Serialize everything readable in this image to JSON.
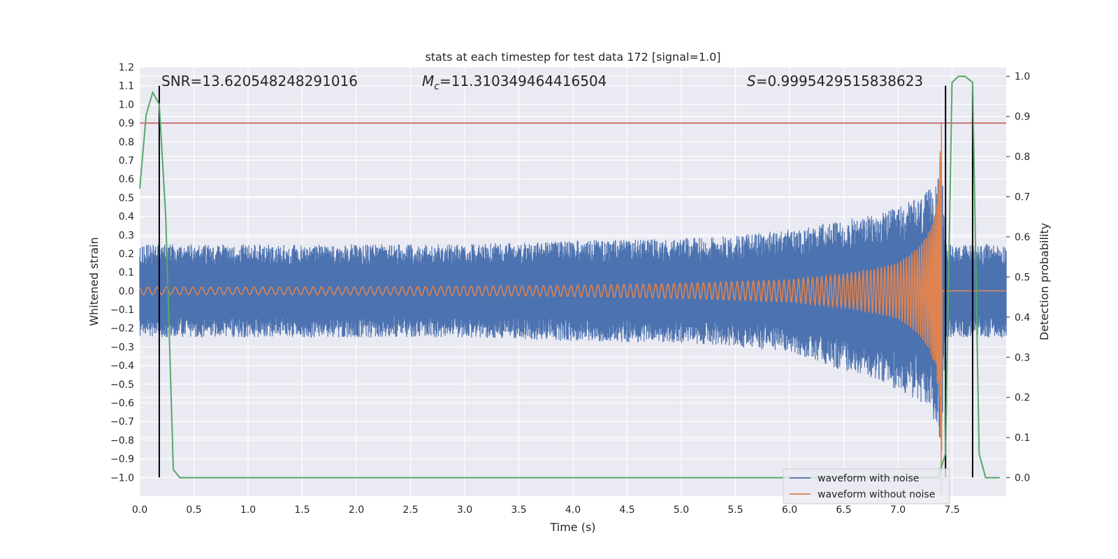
{
  "chart_data": {
    "type": "line",
    "title": "stats at each timestep for test data 172 [signal=1.0]",
    "xlabel": "Time (s)",
    "ylabel": "Whitened strain",
    "ylabel_right": "Detection probability",
    "xlim": [
      0.0,
      8.0
    ],
    "ylim": [
      -1.1,
      1.2
    ],
    "ylim_right": [
      -0.046,
      1.023
    ],
    "x_ticks": [
      "0.0",
      "0.5",
      "1.0",
      "1.5",
      "2.0",
      "2.5",
      "3.0",
      "3.5",
      "4.0",
      "4.5",
      "5.0",
      "5.5",
      "6.0",
      "6.5",
      "7.0",
      "7.5"
    ],
    "y_ticks": [
      "1.2",
      "1.1",
      "1.0",
      "0.9",
      "0.8",
      "0.7",
      "0.6",
      "0.5",
      "0.4",
      "0.3",
      "0.2",
      "0.1",
      "0.0",
      "−0.1",
      "−0.2",
      "−0.3",
      "−0.4",
      "−0.5",
      "−0.6",
      "−0.7",
      "−0.8",
      "−0.9",
      "−1.0"
    ],
    "y_ticks_right": [
      "1.0",
      "0.9",
      "0.8",
      "0.7",
      "0.6",
      "0.5",
      "0.4",
      "0.3",
      "0.2",
      "0.1",
      "0.0"
    ],
    "annotations": {
      "snr": "SNR=13.620548248291016",
      "mc_symbol": "M",
      "mc_sub": "c",
      "mc_value": "=11.310349464416504",
      "s_symbol": "S",
      "s_value": "=0.9995429515838623"
    },
    "threshold": {
      "y": 0.9,
      "color": "#c44e52"
    },
    "vlines": [
      {
        "x": 0.18,
        "y0": -1.0,
        "y1": 1.1
      },
      {
        "x": 7.44,
        "y0": -1.0,
        "y1": 1.1
      },
      {
        "x": 7.69,
        "y0": -1.0,
        "y1": 1.1
      }
    ],
    "series": [
      {
        "name": "waveform with noise",
        "color": "#4c72b0",
        "envelope": {
          "x": [
            0.0,
            1.0,
            2.0,
            3.0,
            4.0,
            5.0,
            5.5,
            6.0,
            6.5,
            6.8,
            7.0,
            7.1,
            7.2,
            7.3,
            7.35,
            7.4,
            7.44,
            8.0
          ],
          "upper": [
            0.25,
            0.25,
            0.25,
            0.25,
            0.27,
            0.28,
            0.3,
            0.33,
            0.38,
            0.41,
            0.45,
            0.48,
            0.5,
            0.55,
            0.62,
            0.75,
            0.25,
            0.25
          ],
          "lower": [
            -0.25,
            -0.25,
            -0.25,
            -0.25,
            -0.27,
            -0.28,
            -0.3,
            -0.33,
            -0.43,
            -0.48,
            -0.53,
            -0.56,
            -0.61,
            -0.65,
            -0.72,
            -0.85,
            -0.25,
            -0.25
          ]
        }
      },
      {
        "name": "waveform without noise",
        "color": "#dd8452",
        "envelope": {
          "x": [
            0.0,
            1.0,
            2.0,
            3.0,
            4.0,
            5.0,
            5.5,
            6.0,
            6.5,
            6.8,
            7.0,
            7.1,
            7.2,
            7.3,
            7.35,
            7.38,
            7.4,
            7.42,
            8.0
          ],
          "amplitude": [
            0.02,
            0.02,
            0.022,
            0.025,
            0.03,
            0.04,
            0.05,
            0.06,
            0.09,
            0.12,
            0.15,
            0.19,
            0.24,
            0.33,
            0.42,
            0.6,
            1.1,
            0.0,
            0.0
          ]
        }
      },
      {
        "name": "detection probability",
        "color": "#55a868",
        "axis": "right",
        "x": [
          0.0,
          0.06,
          0.12,
          0.18,
          0.24,
          0.31,
          0.37,
          0.5,
          1.0,
          2.0,
          3.0,
          4.0,
          5.0,
          6.0,
          7.0,
          7.25,
          7.37,
          7.44,
          7.5,
          7.56,
          7.62,
          7.69,
          7.75,
          7.81,
          7.94
        ],
        "values": [
          0.72,
          0.905,
          0.96,
          0.93,
          0.65,
          0.02,
          0.0,
          0.0,
          0.0,
          0.0,
          0.0,
          0.0,
          0.0,
          0.0,
          0.0,
          0.0,
          0.0,
          0.06,
          0.985,
          1.0,
          1.0,
          0.985,
          0.06,
          0.0,
          0.0
        ]
      }
    ],
    "legend": {
      "placement": "lower-right"
    },
    "grid": true
  }
}
